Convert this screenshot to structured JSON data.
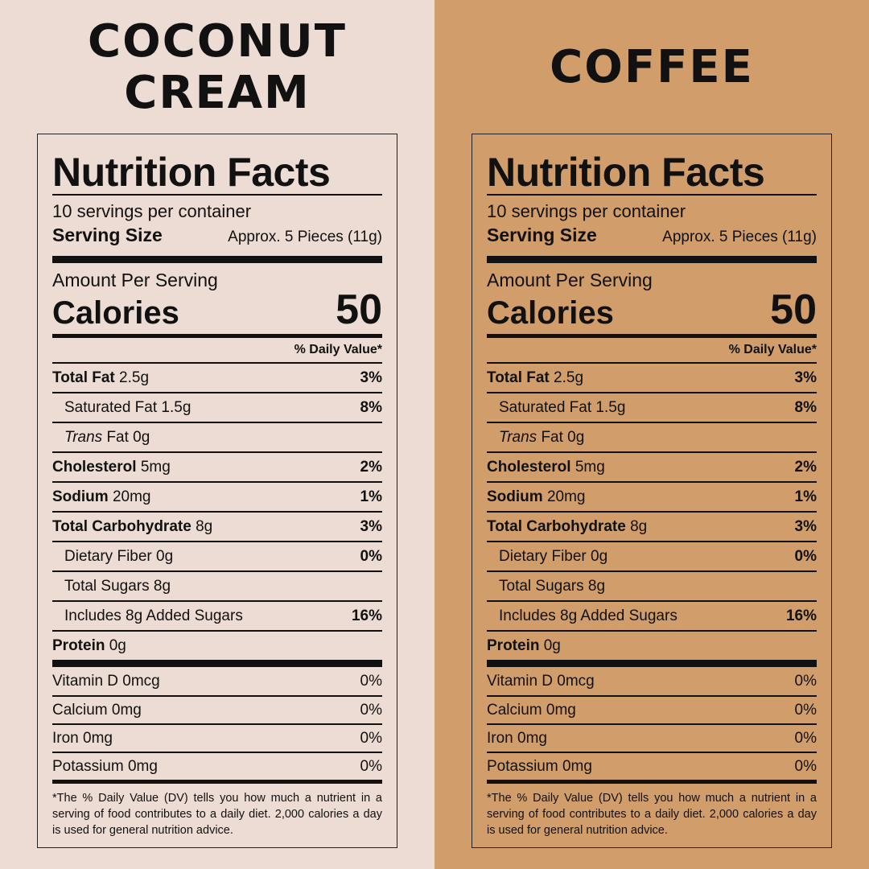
{
  "labels": [
    {
      "flavor_line1": "COCONUT",
      "flavor_line2": "CREAM",
      "title": "Nutrition Facts",
      "servings_per_container": "10 servings per container",
      "serving_size_label": "Serving Size",
      "serving_size_value": "Approx. 5 Pieces (11g)",
      "amount_per_serving": "Amount Per Serving",
      "calories_label": "Calories",
      "calories_value": "50",
      "daily_value_header": "% Daily Value*",
      "nutrients": [
        {
          "name": "Total Fat",
          "amount": "2.5g",
          "pct": "3%"
        },
        {
          "name": "Saturated Fat",
          "amount": "1.5g",
          "pct": "8%"
        },
        {
          "name": "Trans",
          "suffix": "Fat 0g",
          "pct": ""
        },
        {
          "name": "Cholesterol",
          "amount": "5mg",
          "pct": "2%"
        },
        {
          "name": "Sodium",
          "amount": "20mg",
          "pct": "1%"
        },
        {
          "name": "Total Carbohydrate",
          "amount": "8g",
          "pct": "3%"
        },
        {
          "name": "Dietary Fiber",
          "amount": "0g",
          "pct": "0%"
        },
        {
          "name": "Total Sugars",
          "amount": "8g",
          "pct": ""
        },
        {
          "name": "Includes 8g Added Sugars",
          "amount": "",
          "pct": "16%"
        },
        {
          "name": "Protein",
          "amount": "0g",
          "pct": ""
        }
      ],
      "vitamins": [
        {
          "name": "Vitamin D 0mcg",
          "pct": "0%"
        },
        {
          "name": "Calcium 0mg",
          "pct": "0%"
        },
        {
          "name": "Iron 0mg",
          "pct": "0%"
        },
        {
          "name": "Potassium 0mg",
          "pct": "0%"
        }
      ],
      "footnote": "*The % Daily Value (DV) tells you how much a nutrient in a serving of food contributes to a daily diet. 2,000 calories a day is used for general nutrition advice."
    },
    {
      "flavor_line1": "COFFEE",
      "title": "Nutrition Facts",
      "servings_per_container": "10 servings per container",
      "serving_size_label": "Serving Size",
      "serving_size_value": "Approx. 5 Pieces (11g)",
      "amount_per_serving": "Amount Per Serving",
      "calories_label": "Calories",
      "calories_value": "50",
      "daily_value_header": "% Daily Value*",
      "nutrients": [
        {
          "name": "Total Fat",
          "amount": "2.5g",
          "pct": "3%"
        },
        {
          "name": "Saturated Fat",
          "amount": "1.5g",
          "pct": "8%"
        },
        {
          "name": "Trans",
          "suffix": "Fat 0g",
          "pct": ""
        },
        {
          "name": "Cholesterol",
          "amount": "5mg",
          "pct": "2%"
        },
        {
          "name": "Sodium",
          "amount": "20mg",
          "pct": "1%"
        },
        {
          "name": "Total Carbohydrate",
          "amount": "8g",
          "pct": "3%"
        },
        {
          "name": "Dietary Fiber",
          "amount": "0g",
          "pct": "0%"
        },
        {
          "name": "Total Sugars",
          "amount": "8g",
          "pct": ""
        },
        {
          "name": "Includes 8g Added Sugars",
          "amount": "",
          "pct": "16%"
        },
        {
          "name": "Protein",
          "amount": "0g",
          "pct": ""
        }
      ],
      "vitamins": [
        {
          "name": "Vitamin D 0mcg",
          "pct": "0%"
        },
        {
          "name": "Calcium 0mg",
          "pct": "0%"
        },
        {
          "name": "Iron 0mg",
          "pct": "0%"
        },
        {
          "name": "Potassium 0mg",
          "pct": "0%"
        }
      ],
      "footnote": "*The % Daily Value (DV) tells you how much a nutrient in a serving of food contributes to a daily diet. 2,000 calories a day is used for general nutrition advice."
    }
  ],
  "colors": {
    "left_background": "#ecdcd3",
    "right_background": "#d19d6a",
    "ink": "#111111"
  }
}
